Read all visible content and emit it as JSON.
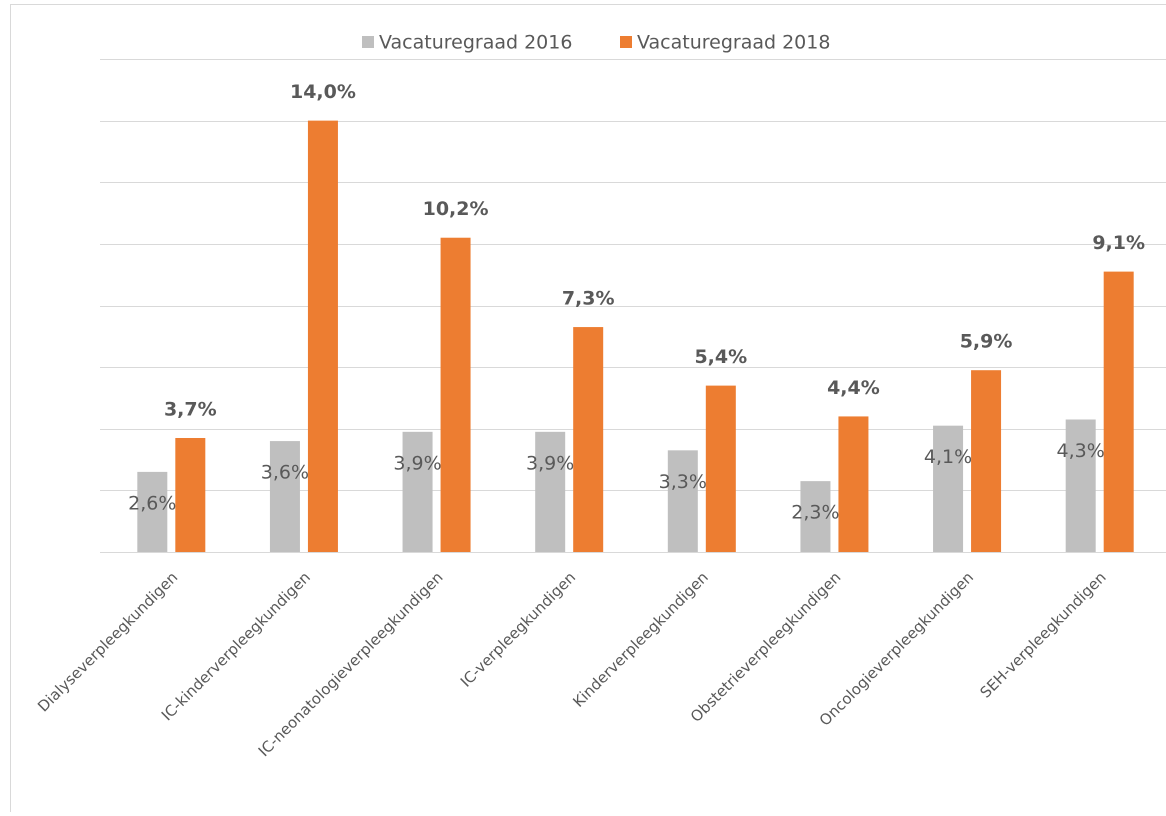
{
  "chart_data": {
    "type": "bar",
    "categories": [
      "Dialyseverpleegkundigen",
      "IC-kinderverpleegkundigen",
      "IC-neonatologieverpleegkundigen",
      "IC-verpleegkundigen",
      "Kinderverpleegkundigen",
      "Obstetrieverpleegkundigen",
      "Oncologieverpleegkundigen",
      "SEH-verpleegkundigen"
    ],
    "series": [
      {
        "name": "Vacaturegraad 2016",
        "color": "#bfbfbf",
        "values": [
          2.6,
          3.6,
          3.9,
          3.9,
          3.3,
          2.3,
          4.1,
          4.3
        ],
        "value_labels": [
          "2,6%",
          "3,6%",
          "3,9%",
          "3,9%",
          "3,3%",
          "2,3%",
          "4,1%",
          "4,3%"
        ]
      },
      {
        "name": "Vacaturegraad 2018",
        "color": "#ed7d31",
        "values": [
          3.7,
          14.0,
          10.2,
          7.3,
          5.4,
          4.4,
          5.9,
          9.1
        ],
        "value_labels": [
          "3,7%",
          "14,0%",
          "10,2%",
          "7,3%",
          "5,4%",
          "4,4%",
          "5,9%",
          "9,1%"
        ]
      }
    ],
    "ylim": [
      0,
      16
    ],
    "yticks": [
      0,
      2,
      4,
      6,
      8,
      10,
      12,
      14,
      16
    ],
    "grid": true,
    "legend": "top"
  }
}
